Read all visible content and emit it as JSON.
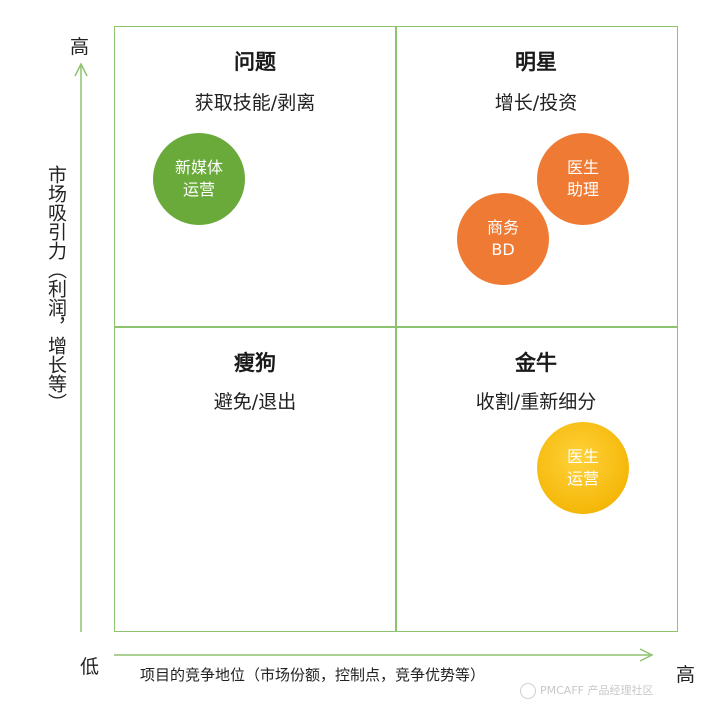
{
  "quadrants": {
    "top_left": {
      "title": "问题",
      "subtitle": "获取技能/剥离"
    },
    "top_right": {
      "title": "明星",
      "subtitle": "增长/投资"
    },
    "bottom_left": {
      "title": "瘦狗",
      "subtitle": "避免/退出"
    },
    "bottom_right": {
      "title": "金牛",
      "subtitle": "收割/重新细分"
    }
  },
  "bubbles": [
    {
      "label": "新媒体\n运营",
      "color": "#6aaa3a"
    },
    {
      "label": "医生\n助理",
      "color": "#ef7a33"
    },
    {
      "label": "商务\nBD",
      "color": "#ef7a33"
    },
    {
      "label": "医生\n运营",
      "color": "#f5b80a"
    }
  ],
  "y_axis": {
    "high": "高",
    "title": "市场吸引力（利润，增长等）"
  },
  "x_axis": {
    "low": "低",
    "high": "高",
    "title": "项目的竞争地位（市场份额，控制点，竞争优势等）"
  },
  "watermark": "PMCAFF 产品经理社区",
  "colors": {
    "grid": "#8dc26f",
    "axis": "#8dc26f"
  }
}
